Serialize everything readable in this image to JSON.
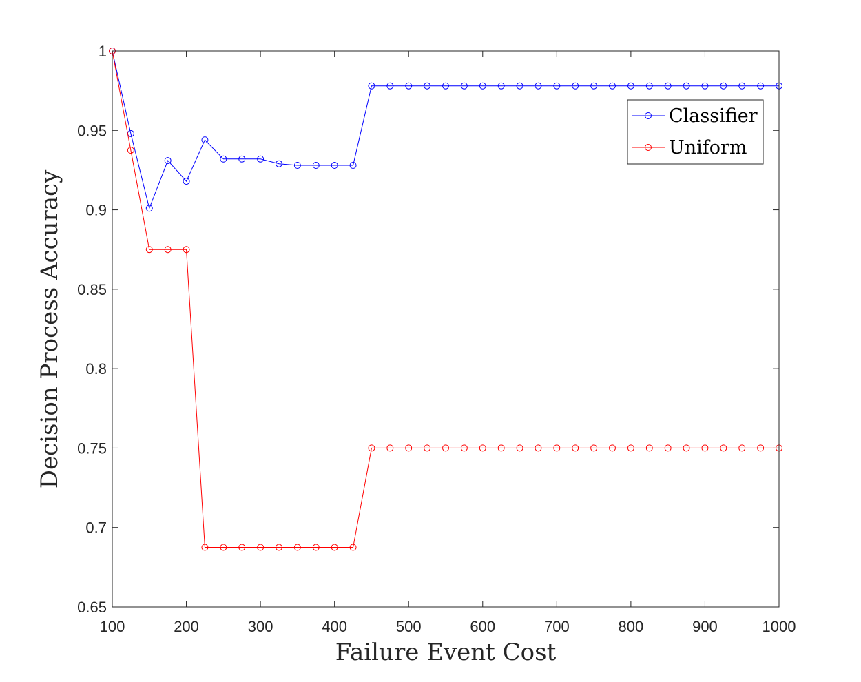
{
  "chart_data": {
    "type": "line",
    "xlabel": "Failure Event Cost",
    "ylabel": "Decision Process Accuracy",
    "xlim": [
      100,
      1000
    ],
    "ylim": [
      0.65,
      1
    ],
    "xticks": [
      100,
      200,
      300,
      400,
      500,
      600,
      700,
      800,
      900,
      1000
    ],
    "yticks": [
      0.65,
      0.7,
      0.75,
      0.8,
      0.85,
      0.9,
      0.95,
      1
    ],
    "ytick_labels": [
      "0.65",
      "0.7",
      "0.75",
      "0.8",
      "0.85",
      "0.9",
      "0.95",
      "1"
    ],
    "grid": false,
    "legend_position": "top-right",
    "x": [
      100,
      125,
      150,
      175,
      200,
      225,
      250,
      275,
      300,
      325,
      350,
      375,
      400,
      425,
      450,
      475,
      500,
      525,
      550,
      575,
      600,
      625,
      650,
      675,
      700,
      725,
      750,
      775,
      800,
      825,
      850,
      875,
      900,
      925,
      950,
      975,
      1000
    ],
    "series": [
      {
        "name": "Classifier",
        "color": "#0000ff",
        "marker": "circle",
        "values": [
          1.0,
          0.948,
          0.901,
          0.931,
          0.918,
          0.944,
          0.932,
          0.932,
          0.932,
          0.929,
          0.928,
          0.928,
          0.928,
          0.928,
          0.978,
          0.978,
          0.978,
          0.978,
          0.978,
          0.978,
          0.978,
          0.978,
          0.978,
          0.978,
          0.978,
          0.978,
          0.978,
          0.978,
          0.978,
          0.978,
          0.978,
          0.978,
          0.978,
          0.978,
          0.978,
          0.978,
          0.978
        ]
      },
      {
        "name": "Uniform",
        "color": "#ff0000",
        "marker": "circle",
        "values": [
          1.0,
          0.9375,
          0.875,
          0.875,
          0.875,
          0.6875,
          0.6875,
          0.6875,
          0.6875,
          0.6875,
          0.6875,
          0.6875,
          0.6875,
          0.6875,
          0.75,
          0.75,
          0.75,
          0.75,
          0.75,
          0.75,
          0.75,
          0.75,
          0.75,
          0.75,
          0.75,
          0.75,
          0.75,
          0.75,
          0.75,
          0.75,
          0.75,
          0.75,
          0.75,
          0.75,
          0.75,
          0.75,
          0.75
        ]
      }
    ]
  }
}
